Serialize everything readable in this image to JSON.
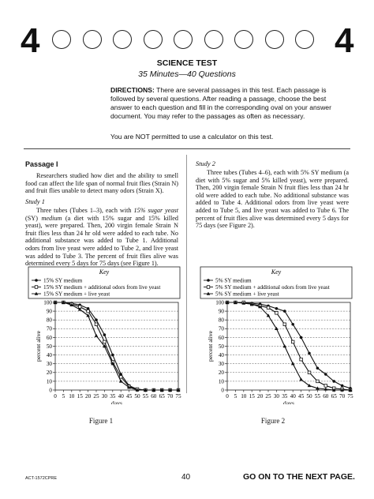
{
  "header": {
    "section_number_left": "4",
    "section_number_right": "4",
    "oval_count": 9
  },
  "test": {
    "title": "SCIENCE TEST",
    "subtitle": "35 Minutes—40 Questions",
    "directions_label": "DIRECTIONS:",
    "directions_text": " There are several passages in this test. Each passage is followed by several questions. After reading a passage, choose the best answer to each question and fill in the corresponding oval on your answer document. You may refer to the passages as often as necessary.",
    "calculator_note": "You are NOT permitted to use a calculator on this test."
  },
  "passage": {
    "heading": "Passage I",
    "intro": "Researchers studied how diet and the ability to smell food can affect the life span of normal fruit flies (Strain N) and fruit flies unable to detect many odors (Strain X).",
    "study1_heading": "Study 1",
    "study1_a": "Three tubes (Tubes 1–3), each with ",
    "study1_italic": "15% sugar yeast",
    "study1_b": " (SY) ",
    "study1_italic2": "medium",
    "study1_c": " (a diet with 15% sugar and 15% killed yeast), were prepared. Then, 200 virgin female Strain N fruit flies less than 24 hr old were added to each tube. No additional substance was added to Tube 1. Additional odors from live yeast were added to Tube 2, and live yeast was added to Tube 3. The percent of fruit flies alive was determined every 5 days for 75 days (see Figure 1).",
    "study2_heading": "Study 2",
    "study2_text": "Three tubes (Tubes 4–6), each with 5% SY medium (a diet with 5% sugar and 5% killed yeast), were prepared. Then, 200 virgin female Strain N fruit flies less than 24 hr old were added to each tube. No additional substance was added to Tube 4. Additional odors from live yeast were added to Tube 5, and live yeast was added to Tube 6. The percent of fruit flies alive was determined every 5 days for 75 days (see Figure 2)."
  },
  "chart_data": [
    {
      "type": "line",
      "title": "Figure 1",
      "legend_title": "Key",
      "legend_position": "top",
      "xlabel": "days",
      "ylabel": "percent alive",
      "xlim": [
        0,
        75
      ],
      "ylim": [
        0,
        100
      ],
      "x_ticks": [
        0,
        5,
        10,
        15,
        20,
        25,
        30,
        35,
        40,
        45,
        50,
        55,
        60,
        65,
        70,
        75
      ],
      "y_ticks": [
        0,
        10,
        20,
        30,
        40,
        50,
        60,
        70,
        80,
        90,
        100
      ],
      "grid": true,
      "x": [
        0,
        5,
        10,
        15,
        20,
        25,
        30,
        35,
        40,
        45,
        50,
        55,
        60,
        65,
        70,
        75
      ],
      "series": [
        {
          "name": "15% SY medium",
          "marker": "circle-filled",
          "values": [
            100,
            100,
            99,
            97,
            93,
            80,
            63,
            40,
            18,
            5,
            1,
            0,
            0,
            0,
            0,
            0
          ]
        },
        {
          "name": "15% SY medium + additional odors from live yeast",
          "marker": "square-open",
          "values": [
            100,
            100,
            98,
            95,
            90,
            75,
            55,
            32,
            15,
            4,
            1,
            0,
            0,
            0,
            0,
            0
          ]
        },
        {
          "name": "15% SY medium + live yeast",
          "marker": "triangle-filled",
          "values": [
            100,
            100,
            97,
            92,
            85,
            62,
            50,
            30,
            10,
            3,
            0,
            0,
            0,
            0,
            0,
            0
          ]
        }
      ]
    },
    {
      "type": "line",
      "title": "Figure 2",
      "legend_title": "Key",
      "legend_position": "top",
      "xlabel": "days",
      "ylabel": "percent alive",
      "xlim": [
        0,
        75
      ],
      "ylim": [
        0,
        100
      ],
      "x_ticks": [
        0,
        5,
        10,
        15,
        20,
        25,
        30,
        35,
        40,
        45,
        50,
        55,
        60,
        65,
        70,
        75
      ],
      "y_ticks": [
        0,
        10,
        20,
        30,
        40,
        50,
        60,
        70,
        80,
        90,
        100
      ],
      "grid": true,
      "x": [
        0,
        5,
        10,
        15,
        20,
        25,
        30,
        35,
        40,
        45,
        50,
        55,
        60,
        65,
        70,
        75
      ],
      "series": [
        {
          "name": "5% SY medium",
          "marker": "circle-filled",
          "values": [
            100,
            100,
            100,
            99,
            98,
            96,
            93,
            90,
            75,
            60,
            42,
            25,
            18,
            10,
            5,
            2
          ]
        },
        {
          "name": "5% SY medium + additional odors from live yeast",
          "marker": "square-open",
          "values": [
            100,
            100,
            100,
            98,
            96,
            94,
            88,
            75,
            55,
            35,
            20,
            10,
            5,
            2,
            1,
            0
          ]
        },
        {
          "name": "5% SY medium + live yeast",
          "marker": "triangle-filled",
          "values": [
            100,
            100,
            99,
            98,
            95,
            85,
            70,
            50,
            30,
            12,
            5,
            2,
            1,
            0,
            0,
            0
          ]
        }
      ]
    }
  ],
  "footer": {
    "code": "ACT-1572CPRE",
    "page_number": "40",
    "next": "GO ON TO THE NEXT PAGE."
  }
}
